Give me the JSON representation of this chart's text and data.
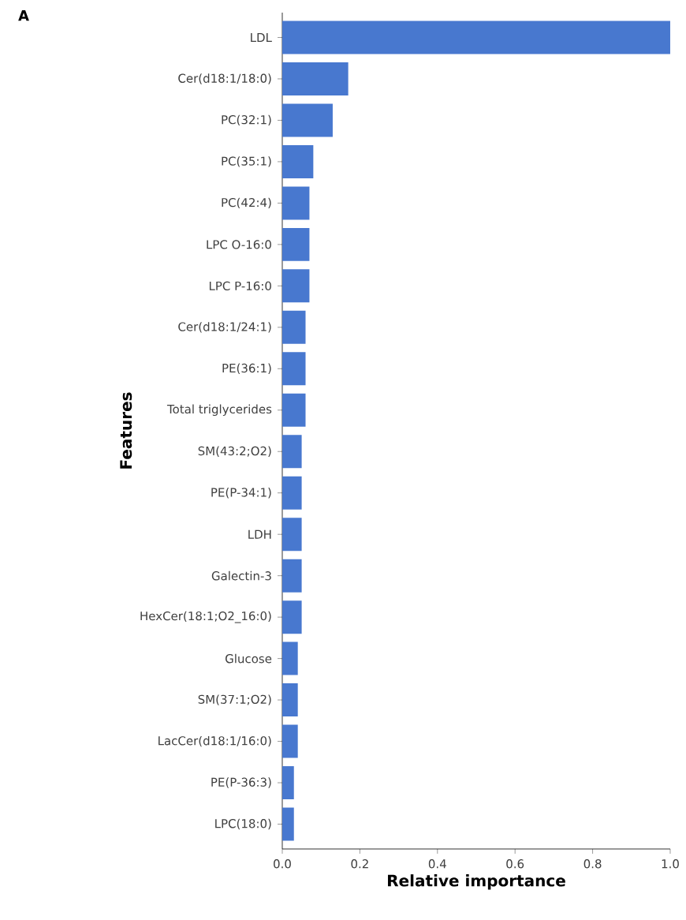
{
  "chart_data": {
    "type": "bar",
    "orientation": "horizontal",
    "xlabel": "Relative importance",
    "ylabel": "Features",
    "annotations": [
      "A"
    ],
    "categories": [
      "LDL",
      "Cer(d18:1/18:0)",
      "PC(32:1)",
      "PC(35:1)",
      "PC(42:4)",
      "LPC O-16:0",
      "LPC P-16:0",
      "Cer(d18:1/24:1)",
      "PE(36:1)",
      "Total triglycerides",
      "SM(43:2;O2)",
      "PE(P-34:1)",
      "LDH",
      "Galectin-3",
      "HexCer(18:1;O2_16:0)",
      "Glucose",
      "SM(37:1;O2)",
      "LacCer(d18:1/16:0)",
      "PE(P-36:3)",
      "LPC(18:0)"
    ],
    "values": [
      1.0,
      0.17,
      0.13,
      0.08,
      0.07,
      0.07,
      0.07,
      0.06,
      0.06,
      0.06,
      0.05,
      0.05,
      0.05,
      0.05,
      0.05,
      0.04,
      0.04,
      0.04,
      0.03,
      0.03
    ],
    "color": "#4878cf",
    "xlim": [
      0,
      1
    ],
    "xticks": [
      {
        "value": 0,
        "label": "0.0"
      },
      {
        "value": 0.2,
        "label": "0.2"
      },
      {
        "value": 0.4,
        "label": "0.4"
      },
      {
        "value": 0.6,
        "label": "0.6"
      },
      {
        "value": 0.8,
        "label": "0.8"
      },
      {
        "value": 1,
        "label": "1.0"
      }
    ]
  }
}
